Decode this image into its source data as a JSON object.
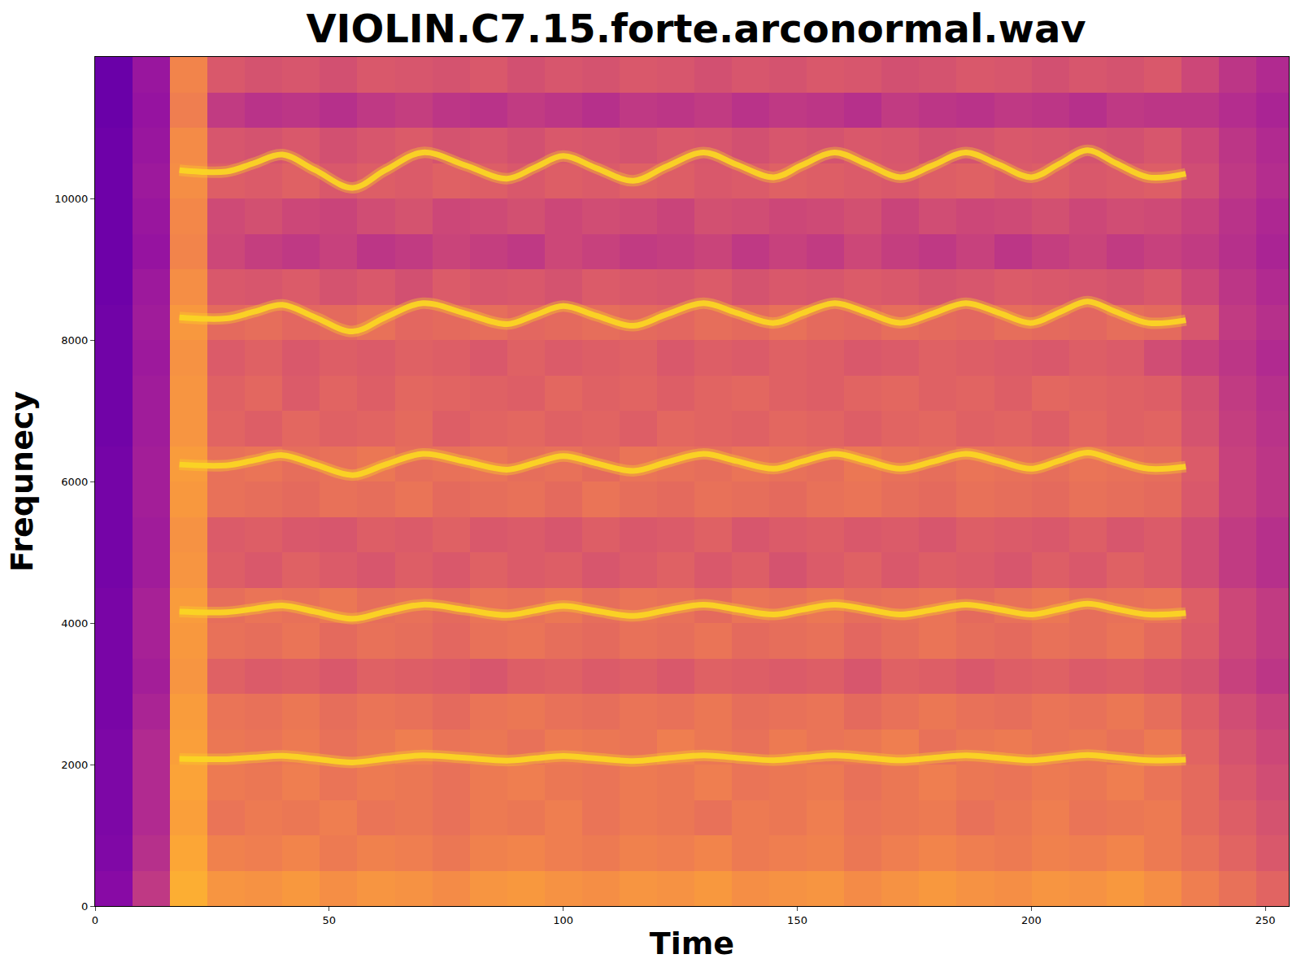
{
  "chart_data": {
    "type": "heatmap",
    "title": "VIOLIN.C7.15.forte.arconormal.wav",
    "x_label": "Time",
    "y_label": "Frequnecy",
    "color": "plasma",
    "grid": true,
    "xlim": [
      0,
      255
    ],
    "ylim": [
      0,
      12000
    ],
    "xticks": [
      0,
      50,
      100,
      150,
      200,
      250
    ],
    "yticks": [
      0,
      2000,
      4000,
      6000,
      8000,
      10000
    ],
    "zlim": [
      0,
      100
    ],
    "x": [
      4,
      12,
      20,
      28,
      36,
      44,
      52,
      60,
      68,
      76,
      84,
      92,
      100,
      108,
      116,
      124,
      132,
      140,
      148,
      156,
      164,
      172,
      180,
      188,
      196,
      204,
      212,
      220,
      228,
      236,
      244,
      252
    ],
    "y": [
      250,
      750,
      1250,
      1750,
      2250,
      2750,
      3250,
      3750,
      4250,
      4750,
      5250,
      5750,
      6250,
      6750,
      7250,
      7750,
      8250,
      8750,
      9250,
      9750,
      10250,
      10750,
      11250,
      11750
    ],
    "cells": [
      [
        28,
        45,
        82,
        75,
        74,
        76,
        73,
        75,
        74,
        72,
        75,
        76,
        74,
        73,
        75,
        74,
        76,
        73,
        74,
        75,
        72,
        74,
        76,
        74,
        73,
        75,
        74,
        76,
        73,
        68,
        64,
        60
      ],
      [
        26,
        42,
        80,
        69,
        68,
        70,
        67,
        69,
        68,
        66,
        69,
        70,
        68,
        67,
        69,
        68,
        70,
        67,
        68,
        69,
        66,
        68,
        70,
        68,
        67,
        69,
        68,
        70,
        67,
        64,
        60,
        56
      ],
      [
        25,
        40,
        78,
        65,
        67,
        66,
        68,
        65,
        66,
        64,
        67,
        66,
        68,
        65,
        67,
        66,
        64,
        67,
        66,
        68,
        65,
        66,
        67,
        64,
        66,
        68,
        65,
        66,
        67,
        62,
        58,
        54
      ],
      [
        25,
        40,
        79,
        67,
        66,
        68,
        65,
        67,
        66,
        64,
        67,
        68,
        66,
        65,
        67,
        66,
        68,
        65,
        66,
        67,
        64,
        66,
        68,
        66,
        65,
        67,
        66,
        68,
        65,
        62,
        56,
        52
      ],
      [
        25,
        40,
        78,
        66,
        65,
        67,
        64,
        66,
        68,
        65,
        66,
        64,
        67,
        66,
        65,
        68,
        66,
        64,
        67,
        65,
        66,
        68,
        64,
        66,
        67,
        65,
        66,
        64,
        67,
        60,
        54,
        50
      ],
      [
        24,
        38,
        77,
        65,
        64,
        66,
        63,
        65,
        64,
        62,
        65,
        66,
        64,
        63,
        65,
        64,
        66,
        63,
        64,
        65,
        62,
        64,
        66,
        64,
        63,
        65,
        64,
        66,
        63,
        58,
        52,
        48
      ],
      [
        24,
        36,
        75,
        59,
        57,
        58,
        56,
        59,
        58,
        57,
        55,
        58,
        59,
        57,
        58,
        56,
        59,
        58,
        57,
        58,
        55,
        59,
        58,
        56,
        58,
        59,
        57,
        58,
        56,
        54,
        48,
        44
      ],
      [
        24,
        37,
        76,
        64,
        63,
        65,
        62,
        64,
        63,
        61,
        64,
        65,
        63,
        62,
        64,
        63,
        65,
        62,
        63,
        64,
        61,
        63,
        65,
        63,
        62,
        64,
        63,
        65,
        62,
        57,
        50,
        46
      ],
      [
        24,
        37,
        77,
        63,
        65,
        64,
        66,
        63,
        64,
        62,
        65,
        64,
        66,
        63,
        65,
        64,
        62,
        65,
        64,
        66,
        63,
        64,
        65,
        62,
        64,
        66,
        63,
        64,
        65,
        58,
        50,
        46
      ],
      [
        23,
        35,
        75,
        58,
        56,
        59,
        57,
        55,
        58,
        56,
        59,
        57,
        58,
        55,
        57,
        59,
        56,
        58,
        54,
        57,
        59,
        56,
        58,
        57,
        55,
        58,
        56,
        59,
        57,
        52,
        46,
        42
      ],
      [
        23,
        35,
        74,
        57,
        58,
        56,
        55,
        58,
        57,
        59,
        56,
        57,
        55,
        58,
        56,
        57,
        59,
        55,
        57,
        58,
        56,
        57,
        55,
        58,
        57,
        56,
        58,
        55,
        57,
        52,
        46,
        42
      ],
      [
        23,
        36,
        76,
        64,
        63,
        62,
        64,
        63,
        65,
        62,
        63,
        64,
        62,
        65,
        63,
        62,
        64,
        63,
        62,
        64,
        65,
        63,
        62,
        64,
        63,
        62,
        64,
        63,
        62,
        56,
        48,
        44
      ],
      [
        23,
        36,
        77,
        64,
        65,
        63,
        64,
        66,
        63,
        64,
        65,
        63,
        64,
        62,
        65,
        64,
        63,
        65,
        64,
        63,
        66,
        64,
        63,
        65,
        64,
        63,
        65,
        64,
        63,
        57,
        48,
        44
      ],
      [
        22,
        35,
        75,
        60,
        58,
        61,
        59,
        60,
        62,
        58,
        60,
        61,
        59,
        60,
        58,
        61,
        60,
        59,
        61,
        60,
        58,
        60,
        61,
        59,
        60,
        58,
        61,
        59,
        60,
        54,
        47,
        43
      ],
      [
        22,
        35,
        75,
        59,
        61,
        57,
        60,
        58,
        61,
        60,
        59,
        58,
        61,
        59,
        60,
        58,
        60,
        61,
        59,
        58,
        60,
        61,
        59,
        60,
        58,
        61,
        60,
        59,
        58,
        53,
        46,
        42
      ],
      [
        22,
        34,
        74,
        57,
        59,
        56,
        58,
        57,
        59,
        58,
        56,
        59,
        57,
        58,
        59,
        56,
        58,
        57,
        59,
        58,
        56,
        57,
        59,
        58,
        57,
        56,
        58,
        57,
        52,
        48,
        44,
        40
      ],
      [
        22,
        35,
        76,
        62,
        63,
        61,
        62,
        64,
        61,
        62,
        63,
        61,
        62,
        63,
        62,
        61,
        63,
        62,
        64,
        62,
        61,
        63,
        62,
        61,
        63,
        62,
        61,
        63,
        62,
        55,
        46,
        42
      ],
      [
        21,
        34,
        73,
        56,
        55,
        57,
        54,
        56,
        53,
        57,
        55,
        56,
        54,
        57,
        56,
        55,
        57,
        54,
        56,
        55,
        57,
        56,
        54,
        55,
        57,
        56,
        55,
        54,
        56,
        50,
        44,
        40
      ],
      [
        21,
        32,
        70,
        50,
        47,
        45,
        48,
        44,
        46,
        49,
        47,
        45,
        50,
        48,
        46,
        47,
        49,
        45,
        48,
        46,
        50,
        47,
        45,
        48,
        44,
        47,
        49,
        46,
        48,
        46,
        42,
        38
      ],
      [
        21,
        33,
        71,
        51,
        53,
        50,
        49,
        52,
        54,
        50,
        51,
        53,
        50,
        52,
        51,
        49,
        53,
        52,
        50,
        51,
        53,
        49,
        52,
        50,
        51,
        53,
        50,
        52,
        51,
        48,
        43,
        39
      ],
      [
        21,
        34,
        73,
        58,
        57,
        59,
        56,
        58,
        57,
        59,
        58,
        56,
        58,
        57,
        59,
        58,
        56,
        57,
        59,
        58,
        57,
        56,
        58,
        59,
        57,
        58,
        56,
        57,
        58,
        52,
        45,
        41
      ],
      [
        21,
        33,
        72,
        55,
        54,
        56,
        53,
        55,
        57,
        54,
        55,
        53,
        56,
        55,
        54,
        56,
        55,
        53,
        55,
        54,
        56,
        55,
        53,
        54,
        56,
        55,
        54,
        53,
        55,
        50,
        44,
        40
      ],
      [
        20,
        32,
        68,
        46,
        43,
        44,
        42,
        45,
        47,
        44,
        43,
        46,
        44,
        42,
        45,
        44,
        46,
        43,
        45,
        44,
        42,
        46,
        44,
        43,
        45,
        44,
        42,
        45,
        44,
        44,
        41,
        38
      ],
      [
        20,
        33,
        70,
        56,
        54,
        55,
        53,
        56,
        55,
        54,
        56,
        53,
        55,
        54,
        56,
        55,
        53,
        55,
        54,
        56,
        55,
        53,
        54,
        56,
        55,
        53,
        55,
        54,
        56,
        50,
        44,
        40
      ]
    ],
    "series": [
      {
        "type": "line",
        "color": "#fbd524",
        "x": [
          18,
          28,
          34,
          40,
          47,
          55,
          62,
          70,
          79,
          88,
          94,
          100,
          107,
          115,
          122,
          130,
          137,
          145,
          151,
          158,
          165,
          172,
          179,
          186,
          193,
          200,
          206,
          212,
          218,
          225,
          233
        ],
        "values": [
          2080,
          2076,
          2100,
          2124,
          2080,
          2030,
          2080,
          2130,
          2094,
          2056,
          2088,
          2120,
          2086,
          2050,
          2090,
          2130,
          2096,
          2060,
          2094,
          2130,
          2096,
          2060,
          2094,
          2130,
          2096,
          2060,
          2098,
          2136,
          2100,
          2060,
          2070
        ]
      },
      {
        "type": "line",
        "color": "#fbd524",
        "x": [
          18,
          28,
          34,
          40,
          47,
          55,
          62,
          70,
          79,
          88,
          94,
          100,
          107,
          115,
          122,
          130,
          137,
          145,
          151,
          158,
          165,
          172,
          179,
          186,
          193,
          200,
          206,
          212,
          218,
          225,
          233
        ],
        "values": [
          4160,
          4152,
          4200,
          4248,
          4160,
          4060,
          4160,
          4260,
          4188,
          4112,
          4176,
          4240,
          4172,
          4100,
          4180,
          4260,
          4192,
          4120,
          4188,
          4260,
          4192,
          4120,
          4188,
          4260,
          4192,
          4120,
          4196,
          4272,
          4200,
          4120,
          4140
        ]
      },
      {
        "type": "line",
        "color": "#fbd524",
        "x": [
          18,
          28,
          34,
          40,
          47,
          55,
          62,
          70,
          79,
          88,
          94,
          100,
          107,
          115,
          122,
          130,
          137,
          145,
          151,
          158,
          165,
          172,
          179,
          186,
          193,
          200,
          206,
          212,
          218,
          225,
          233
        ],
        "values": [
          6240,
          6228,
          6300,
          6372,
          6240,
          6090,
          6240,
          6390,
          6282,
          6168,
          6264,
          6360,
          6258,
          6150,
          6270,
          6390,
          6288,
          6180,
          6282,
          6390,
          6288,
          6180,
          6282,
          6390,
          6288,
          6180,
          6294,
          6408,
          6300,
          6180,
          6210
        ]
      },
      {
        "type": "line",
        "color": "#fbd524",
        "x": [
          18,
          28,
          34,
          40,
          47,
          55,
          62,
          70,
          79,
          88,
          94,
          100,
          107,
          115,
          122,
          130,
          137,
          145,
          151,
          158,
          165,
          172,
          179,
          186,
          193,
          200,
          206,
          212,
          218,
          225,
          233
        ],
        "values": [
          8320,
          8304,
          8400,
          8496,
          8320,
          8120,
          8320,
          8520,
          8376,
          8224,
          8352,
          8480,
          8344,
          8200,
          8360,
          8520,
          8384,
          8240,
          8376,
          8520,
          8384,
          8240,
          8376,
          8520,
          8384,
          8240,
          8392,
          8544,
          8400,
          8240,
          8280
        ]
      },
      {
        "type": "line",
        "color": "#fbd524",
        "x": [
          18,
          28,
          34,
          40,
          47,
          55,
          62,
          70,
          79,
          88,
          94,
          100,
          107,
          115,
          122,
          130,
          137,
          145,
          151,
          158,
          165,
          172,
          179,
          186,
          193,
          200,
          206,
          212,
          218,
          225,
          233
        ],
        "values": [
          10400,
          10380,
          10500,
          10620,
          10400,
          10150,
          10400,
          10650,
          10470,
          10280,
          10440,
          10600,
          10430,
          10250,
          10450,
          10650,
          10480,
          10300,
          10470,
          10650,
          10480,
          10300,
          10470,
          10650,
          10480,
          10300,
          10490,
          10680,
          10500,
          10300,
          10350
        ]
      }
    ]
  }
}
